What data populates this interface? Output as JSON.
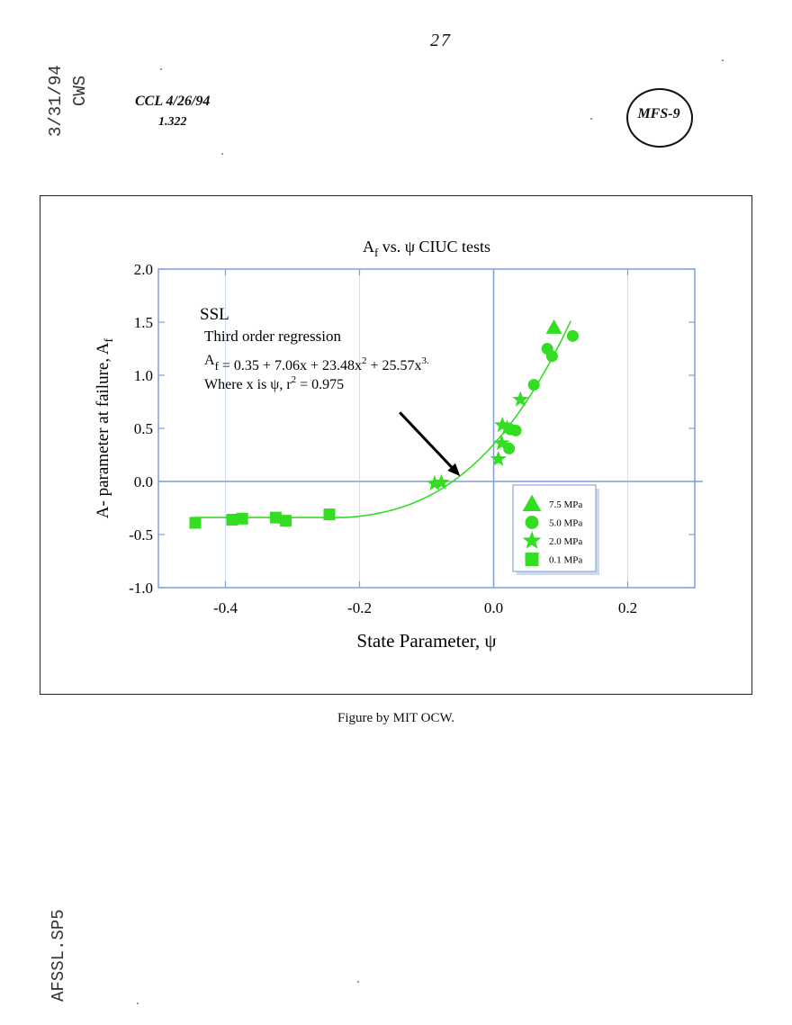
{
  "page": {
    "page_number": "27",
    "stamp_date": "3/31/94",
    "stamp_initials": "CWS",
    "ccl_note": "CCL 4/26/94",
    "ccl_sub": "1.322",
    "circle_label": "MFS-9",
    "file_label": "AFSSL.SP5",
    "caption": "Figure by MIT OCW."
  },
  "colors": {
    "marker": "#33dd22",
    "axis": "#7f9fdc",
    "grid": "#cfe0f4",
    "frame": "#222222"
  },
  "chart_data": {
    "type": "scatter",
    "title": "A_f vs. ψ CIUC tests",
    "title_parts": {
      "main": "A",
      "sub": "f",
      "rest": " vs. ψ CIUC tests"
    },
    "xlabel": "State Parameter, ψ",
    "ylabel_parts": {
      "main": "A- parameter at failure, A",
      "sub": "f"
    },
    "xlim": [
      -0.5,
      0.3
    ],
    "ylim": [
      -1.0,
      2.0
    ],
    "x_ticks": [
      -0.4,
      -0.2,
      0.0,
      0.2
    ],
    "x_tick_labels": [
      "-0.4",
      "-0.2",
      "0.0",
      "0.2"
    ],
    "y_ticks": [
      -1.0,
      -0.5,
      0.0,
      0.5,
      1.0,
      1.5,
      2.0
    ],
    "y_tick_labels": [
      "-1.0",
      "-0.5",
      "0.0",
      "0.5",
      "1.0",
      "1.5",
      "2.0"
    ],
    "grid": true,
    "annotation": {
      "label": "SSL",
      "line1": "Third order regression",
      "eq_parts": [
        "A",
        "f",
        " = 0.35 + 7.06x + 23.48x",
        "2",
        " + 25.57x",
        "3."
      ],
      "line3_parts": [
        "Where x is ψ, r",
        "2",
        " = 0.975"
      ],
      "arrow_from": [
        -0.14,
        0.65
      ],
      "arrow_to": [
        -0.05,
        0.05
      ]
    },
    "legend_position": "lower-right",
    "series": [
      {
        "name": "7.5 MPa",
        "marker": "triangle",
        "points": [
          [
            0.09,
            1.45
          ]
        ]
      },
      {
        "name": "5.0 MPa",
        "marker": "circle",
        "points": [
          [
            0.023,
            0.31
          ],
          [
            0.025,
            0.49
          ],
          [
            0.033,
            0.48
          ],
          [
            0.06,
            0.91
          ],
          [
            0.08,
            1.25
          ],
          [
            0.087,
            1.18
          ],
          [
            0.118,
            1.37
          ]
        ]
      },
      {
        "name": "2.0 MPa",
        "marker": "star",
        "points": [
          [
            -0.088,
            -0.02
          ],
          [
            -0.078,
            -0.01
          ],
          [
            0.007,
            0.21
          ],
          [
            0.012,
            0.36
          ],
          [
            0.013,
            0.53
          ],
          [
            0.02,
            0.5
          ],
          [
            0.04,
            0.77
          ]
        ]
      },
      {
        "name": "0.1 MPa",
        "marker": "square",
        "points": [
          [
            -0.445,
            -0.39
          ],
          [
            -0.39,
            -0.36
          ],
          [
            -0.375,
            -0.35
          ],
          [
            -0.325,
            -0.34
          ],
          [
            -0.31,
            -0.37
          ],
          [
            -0.245,
            -0.31
          ]
        ]
      }
    ],
    "regression": {
      "name": "SSL",
      "coefficients": [
        0.35,
        7.06,
        23.48,
        25.57
      ],
      "x_range": [
        -0.45,
        0.115
      ],
      "plateau_value": -0.34
    }
  }
}
